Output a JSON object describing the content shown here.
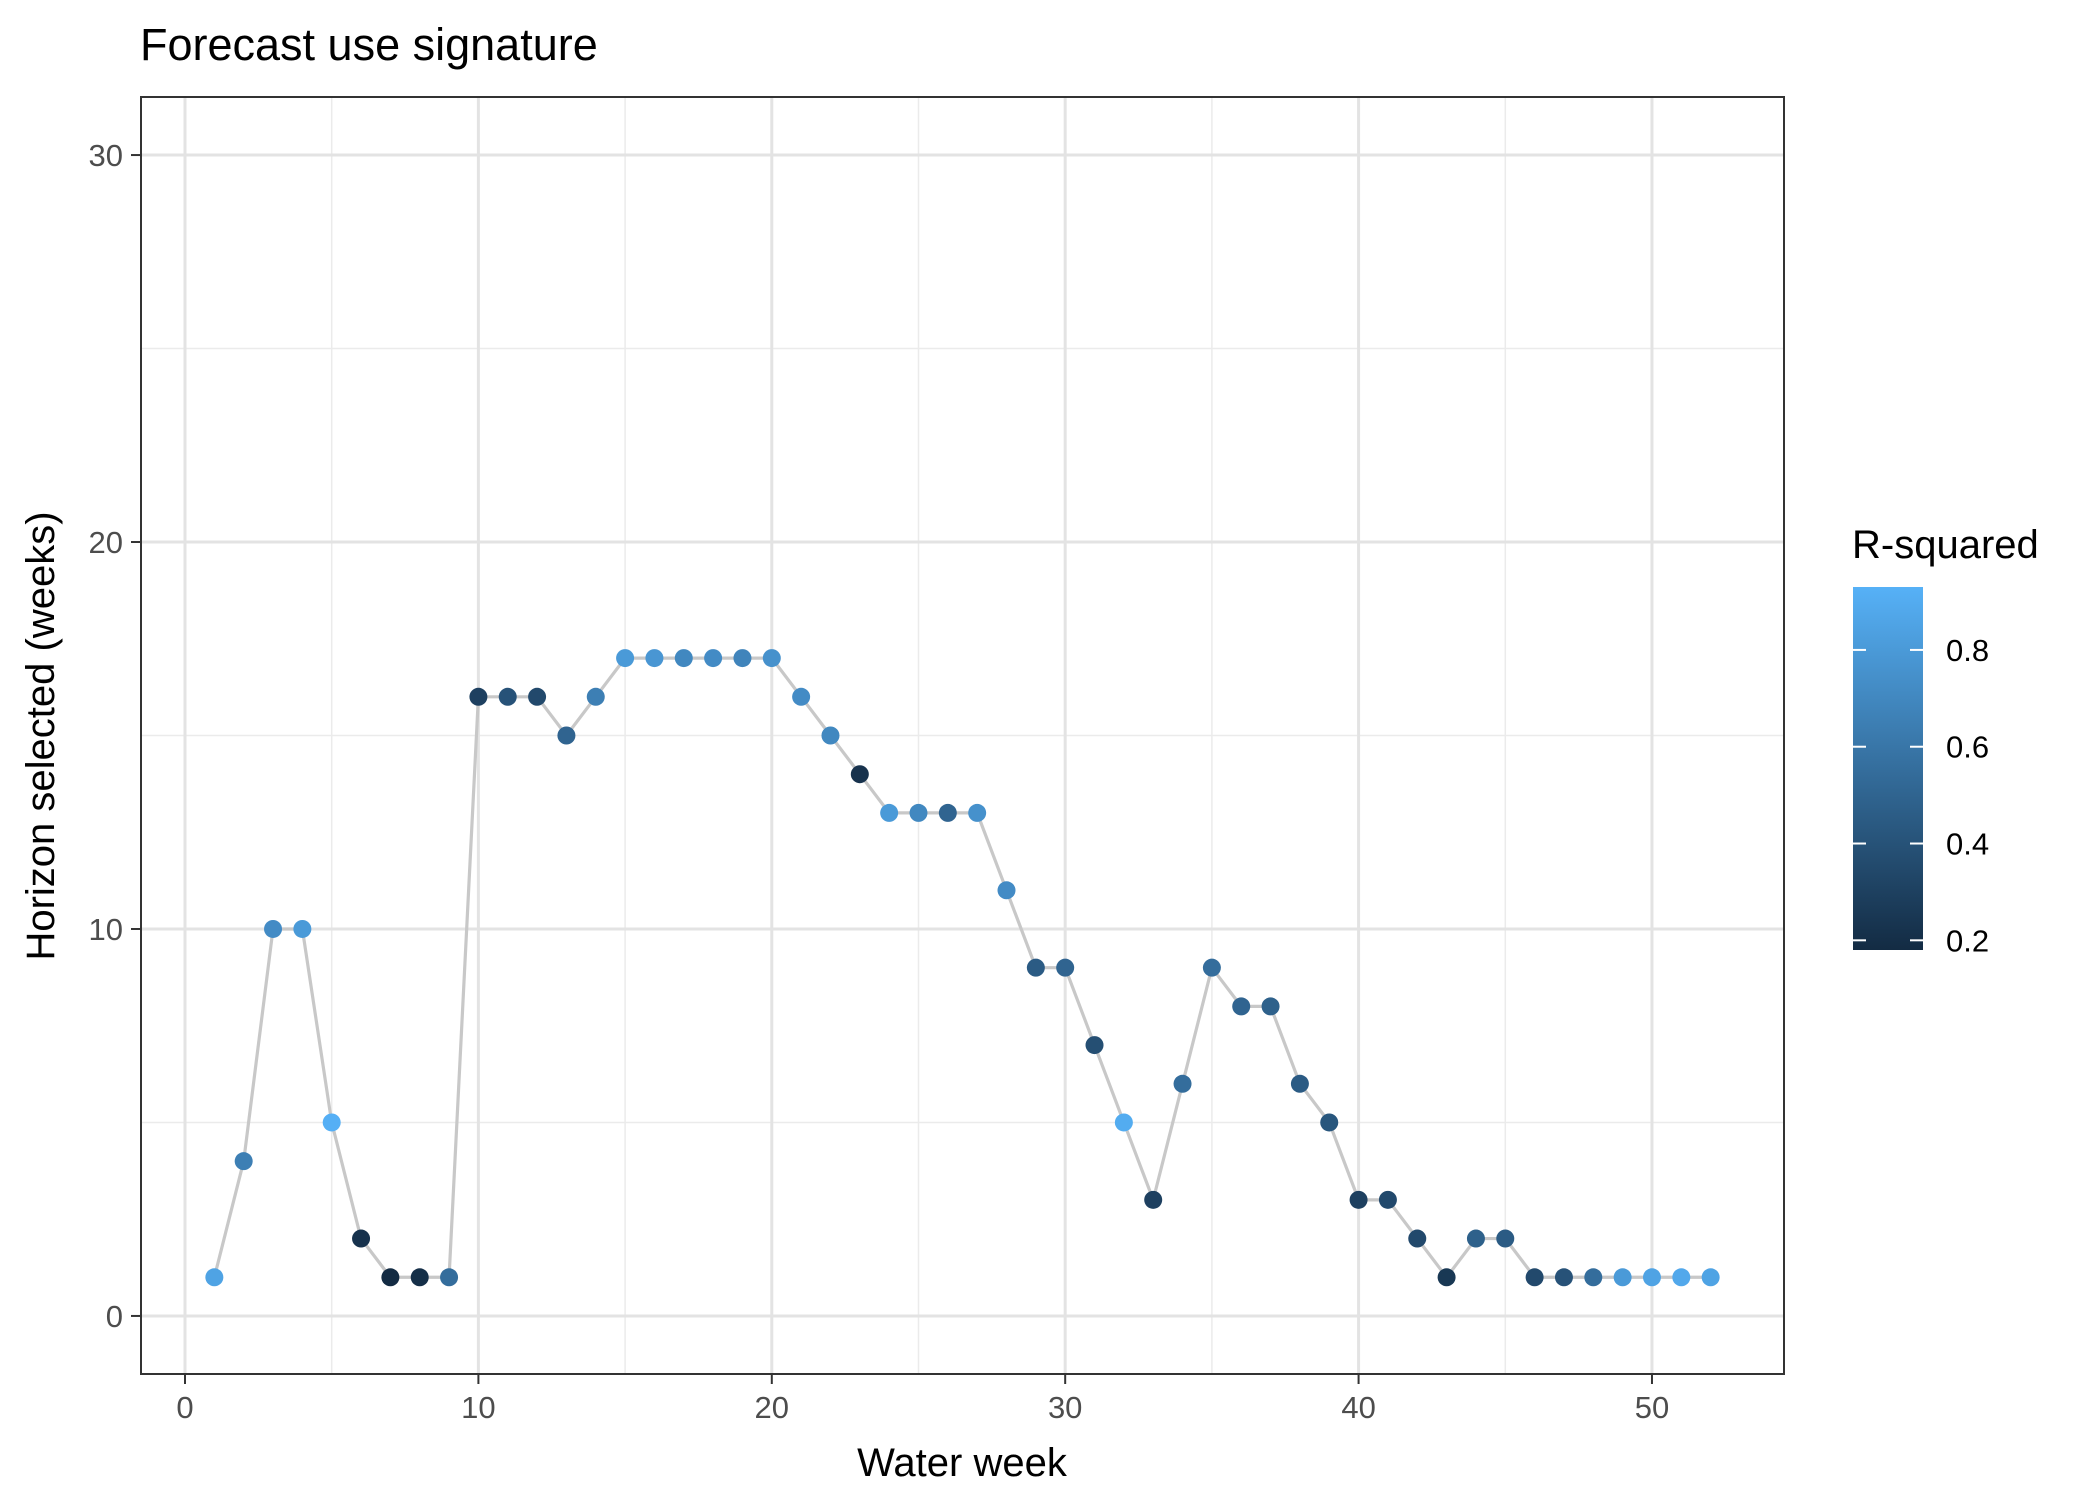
{
  "chart_data": {
    "type": "scatter",
    "title": "Forecast use signature",
    "xlabel": "Water week",
    "ylabel": "Horizon selected (weeks)",
    "xlim": [
      -1.5,
      54.5
    ],
    "ylim": [
      -1.5,
      31.5
    ],
    "x_ticks": [
      0,
      10,
      20,
      30,
      40,
      50
    ],
    "x_tick_labels": [
      "0",
      "10",
      "20",
      "30",
      "40",
      "50"
    ],
    "y_ticks": [
      0,
      10,
      20,
      30
    ],
    "y_tick_labels": [
      "0",
      "10",
      "20",
      "30"
    ],
    "grid": true,
    "connect_points": true,
    "line_color": "#c8c8c8",
    "legend": {
      "title": "R-squared",
      "position": "right",
      "type": "colorbar",
      "range": [
        0.18,
        0.93
      ],
      "ticks": [
        0.2,
        0.4,
        0.6,
        0.8
      ],
      "tick_labels": [
        "0.2",
        "0.4",
        "0.6",
        "0.8"
      ],
      "low_color": "#132B43",
      "high_color": "#56B1F7"
    },
    "series": [
      {
        "x": [
          1,
          2,
          3,
          4,
          5,
          6,
          7,
          8,
          9,
          10,
          11,
          12,
          13,
          14,
          15,
          16,
          17,
          18,
          19,
          20,
          21,
          22,
          23,
          24,
          25,
          26,
          27,
          28,
          29,
          30,
          31,
          32,
          33,
          34,
          35,
          36,
          37,
          38,
          39,
          40,
          41,
          42,
          43,
          44,
          45,
          46,
          47,
          48,
          49,
          50,
          51,
          52
        ],
        "y": [
          1,
          4,
          10,
          10,
          5,
          2,
          1,
          1,
          1,
          16,
          16,
          16,
          15,
          16,
          17,
          17,
          17,
          17,
          17,
          17,
          16,
          15,
          14,
          13,
          13,
          13,
          13,
          11,
          9,
          9,
          7,
          5,
          3,
          6,
          9,
          8,
          8,
          6,
          5,
          3,
          3,
          2,
          1,
          2,
          2,
          1,
          1,
          1,
          1,
          1,
          1,
          1
        ],
        "r_squared": [
          0.85,
          0.65,
          0.72,
          0.8,
          0.92,
          0.22,
          0.18,
          0.2,
          0.55,
          0.3,
          0.4,
          0.35,
          0.5,
          0.65,
          0.8,
          0.78,
          0.7,
          0.72,
          0.68,
          0.75,
          0.72,
          0.7,
          0.22,
          0.8,
          0.7,
          0.5,
          0.75,
          0.72,
          0.45,
          0.5,
          0.38,
          0.9,
          0.3,
          0.55,
          0.55,
          0.5,
          0.48,
          0.45,
          0.42,
          0.3,
          0.35,
          0.35,
          0.25,
          0.48,
          0.45,
          0.35,
          0.4,
          0.55,
          0.8,
          0.85,
          0.88,
          0.85
        ]
      }
    ]
  }
}
